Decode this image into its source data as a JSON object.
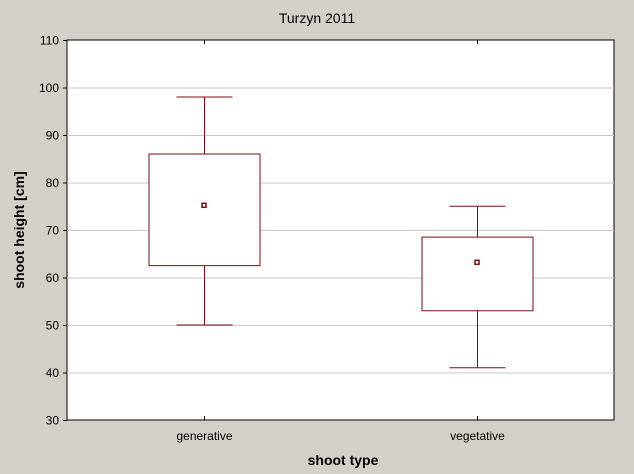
{
  "chart_data": {
    "type": "boxplot",
    "title": "Turzyn 2011",
    "xlabel": "shoot type",
    "ylabel": "shoot height [cm]",
    "ylim": [
      30,
      110
    ],
    "yticks": [
      30,
      40,
      50,
      60,
      70,
      80,
      90,
      100,
      110
    ],
    "grid": true,
    "categories": [
      "generative",
      "vegetative"
    ],
    "boxes": [
      {
        "category": "generative",
        "whisker_low": 50,
        "q1": 62.5,
        "center": 75.2,
        "q3": 86,
        "whisker_high": 98
      },
      {
        "category": "vegetative",
        "whisker_low": 41,
        "q1": 53,
        "center": 63.2,
        "q3": 68.5,
        "whisker_high": 75
      }
    ],
    "colors": {
      "background": "#d4d0c8",
      "plot_area": "#ffffff",
      "box_stroke": "#7a0e12",
      "grid": "#c8c8c8"
    }
  }
}
